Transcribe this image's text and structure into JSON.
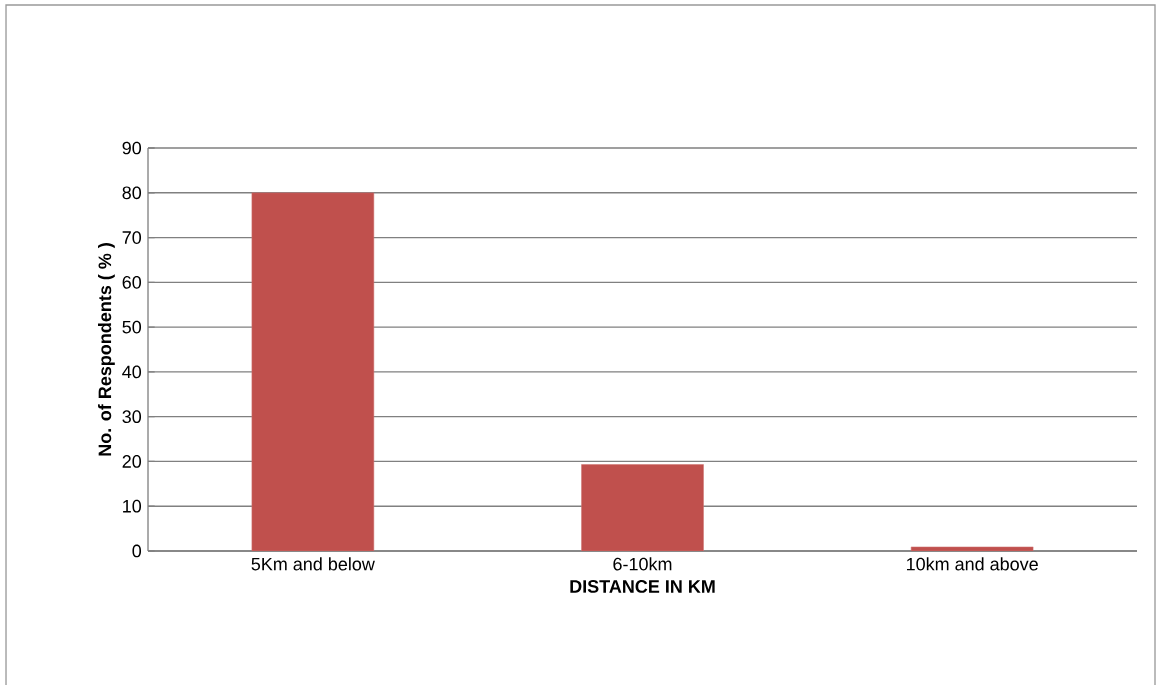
{
  "chart_data": {
    "type": "bar",
    "xlabel": "DISTANCE IN KM",
    "ylabel": "No. of Respondents ( % )",
    "categories": [
      "5Km and below",
      "6-10km",
      "10km and above"
    ],
    "values": [
      80,
      19.3,
      0.9
    ],
    "color": "#c0504d",
    "ylim": [
      0,
      90
    ],
    "yticks": [
      0,
      10,
      20,
      30,
      40,
      50,
      60,
      70,
      80,
      90
    ],
    "grid": "y"
  }
}
